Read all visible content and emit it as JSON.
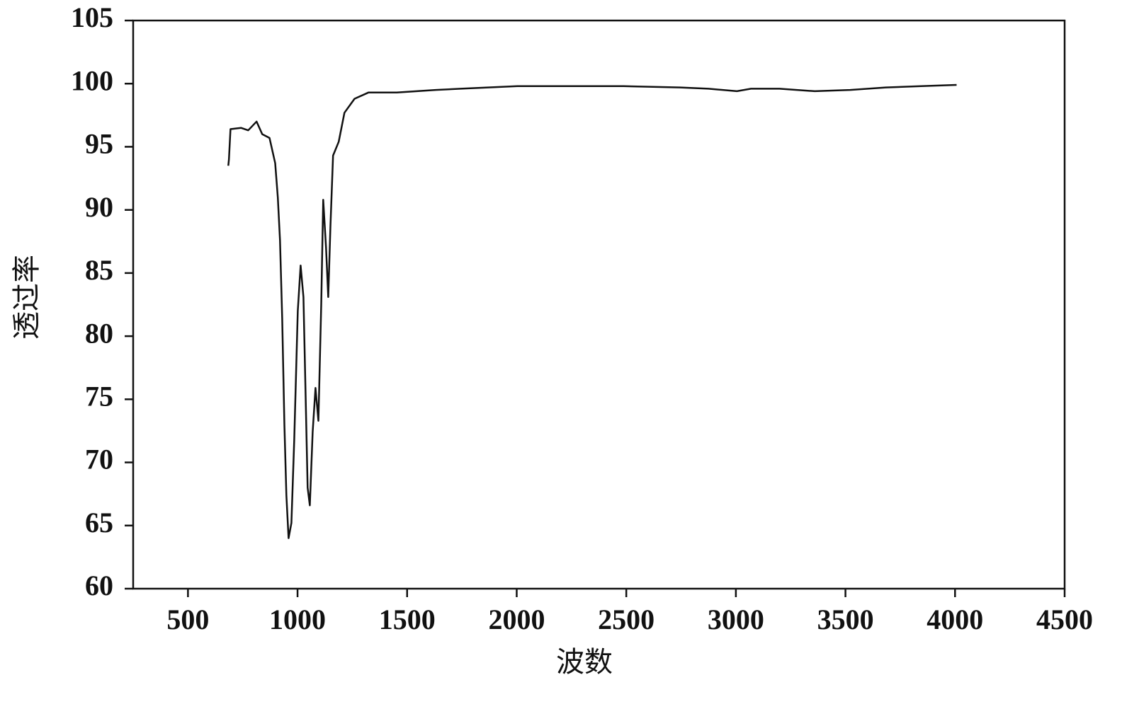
{
  "chart_data": {
    "type": "line",
    "x_label": "波数",
    "y_label": "透过率",
    "xlim": [
      250,
      4500
    ],
    "xticks": [
      500,
      1000,
      1500,
      2000,
      2500,
      3000,
      3500,
      4000,
      4500
    ],
    "ylim": [
      60,
      105
    ],
    "yticks": [
      60,
      65,
      70,
      75,
      80,
      85,
      90,
      95,
      100,
      105
    ],
    "series": [
      {
        "color": "#111111",
        "x": [
          684,
          687,
          694,
          742,
          775,
          813,
          839,
          872,
          898,
          910,
          920,
          930,
          940,
          949,
          959,
          972,
          985,
          1001,
          1014,
          1027,
          1037,
          1046,
          1056,
          1069,
          1082,
          1095,
          1108,
          1117,
          1130,
          1140,
          1150,
          1162,
          1188,
          1214,
          1260,
          1324,
          1453,
          1631,
          1744,
          2003,
          2294,
          2488,
          2746,
          2875,
          3005,
          3069,
          3199,
          3360,
          3522,
          3684,
          3845,
          4007
        ],
        "values": [
          93.5,
          94.0,
          96.4,
          96.5,
          96.3,
          97.0,
          96.0,
          95.7,
          93.7,
          91.0,
          87.6,
          81.4,
          73.0,
          67.4,
          64.0,
          65.2,
          71.8,
          82.0,
          85.6,
          83.1,
          75.2,
          68.0,
          66.6,
          72.4,
          75.9,
          73.3,
          82.5,
          90.8,
          87.0,
          83.1,
          88.7,
          94.3,
          95.4,
          97.7,
          98.8,
          99.3,
          99.3,
          99.5,
          99.6,
          99.8,
          99.8,
          99.8,
          99.7,
          99.6,
          99.4,
          99.6,
          99.6,
          99.4,
          99.5,
          99.7,
          99.8,
          99.9
        ]
      }
    ]
  }
}
